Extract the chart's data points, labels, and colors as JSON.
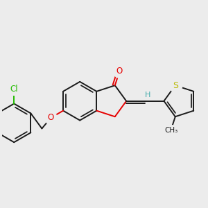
{
  "bg": "#ececec",
  "bond_color": "#1a1a1a",
  "O_color": "#e60000",
  "S_color": "#b8b800",
  "Cl_color": "#22bb00",
  "H_color": "#44aaaa",
  "lw": 1.4,
  "xlim": [
    -3.0,
    2.5
  ],
  "ylim": [
    -1.7,
    1.7
  ]
}
